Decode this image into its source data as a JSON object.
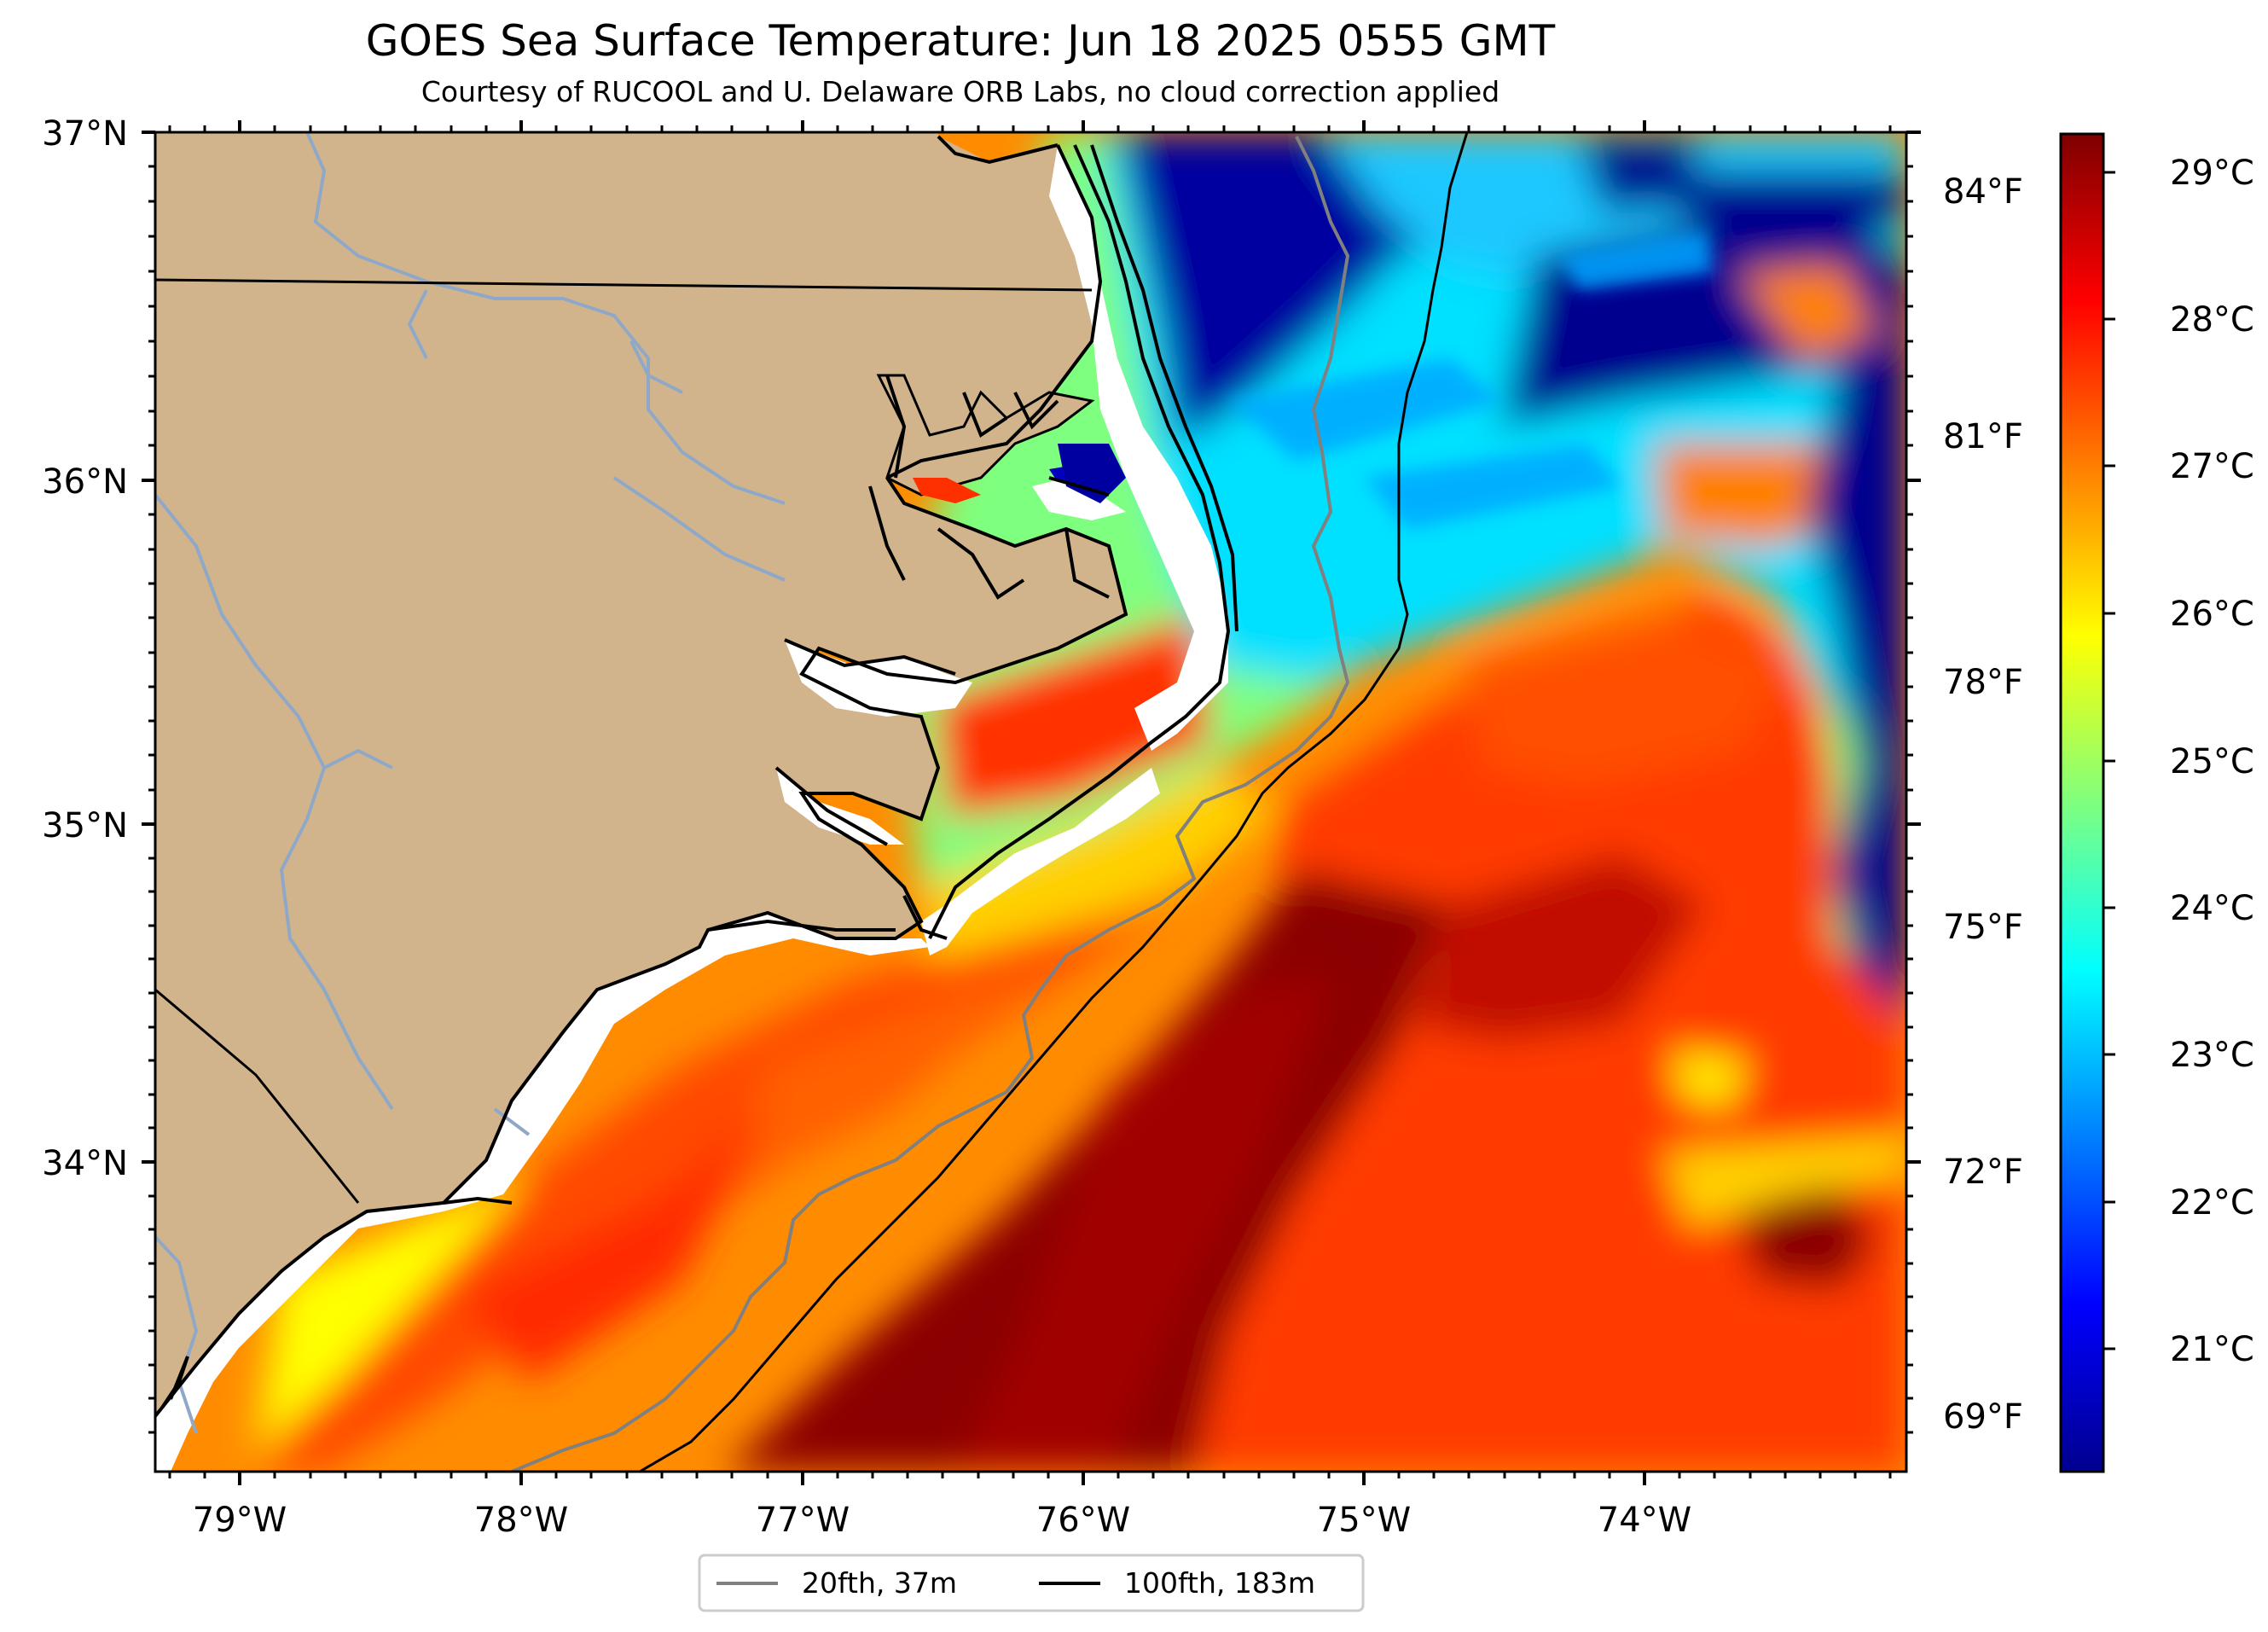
{
  "header": {
    "title": "GOES Sea Surface Temperature: Jun 18 2025 0555 GMT",
    "subtitle": "Courtesy of RUCOOL and U. Delaware ORB Labs, no cloud correction applied"
  },
  "map": {
    "lat_labels": [
      "37°N",
      "36°N",
      "35°N",
      "34°N"
    ],
    "lon_labels": [
      "79°W",
      "78°W",
      "77°W",
      "76°W",
      "75°W",
      "74°W"
    ],
    "fahrenheit_labels": [
      "84°F",
      "81°F",
      "78°F",
      "75°F",
      "72°F",
      "69°F"
    ],
    "extent": {
      "lon": [
        -79.3,
        -73.1
      ],
      "lat": [
        33.1,
        37.0
      ]
    },
    "colors": {
      "land": "#d2b48c",
      "nodata": "#ffffff",
      "coast": "#000000",
      "rivers": "#8fa8c8",
      "isobath_20": "#808080",
      "isobath_100": "#000000"
    }
  },
  "colorbar": {
    "colormap": "jet",
    "range_c": [
      20.3,
      29.3
    ],
    "labels": [
      "29°C",
      "28°C",
      "27°C",
      "26°C",
      "25°C",
      "24°C",
      "23°C",
      "22°C",
      "21°C"
    ]
  },
  "legend": {
    "items": [
      {
        "label": "20fth, 37m",
        "color": "#808080"
      },
      {
        "label": "100fth, 183m",
        "color": "#000000"
      }
    ]
  }
}
